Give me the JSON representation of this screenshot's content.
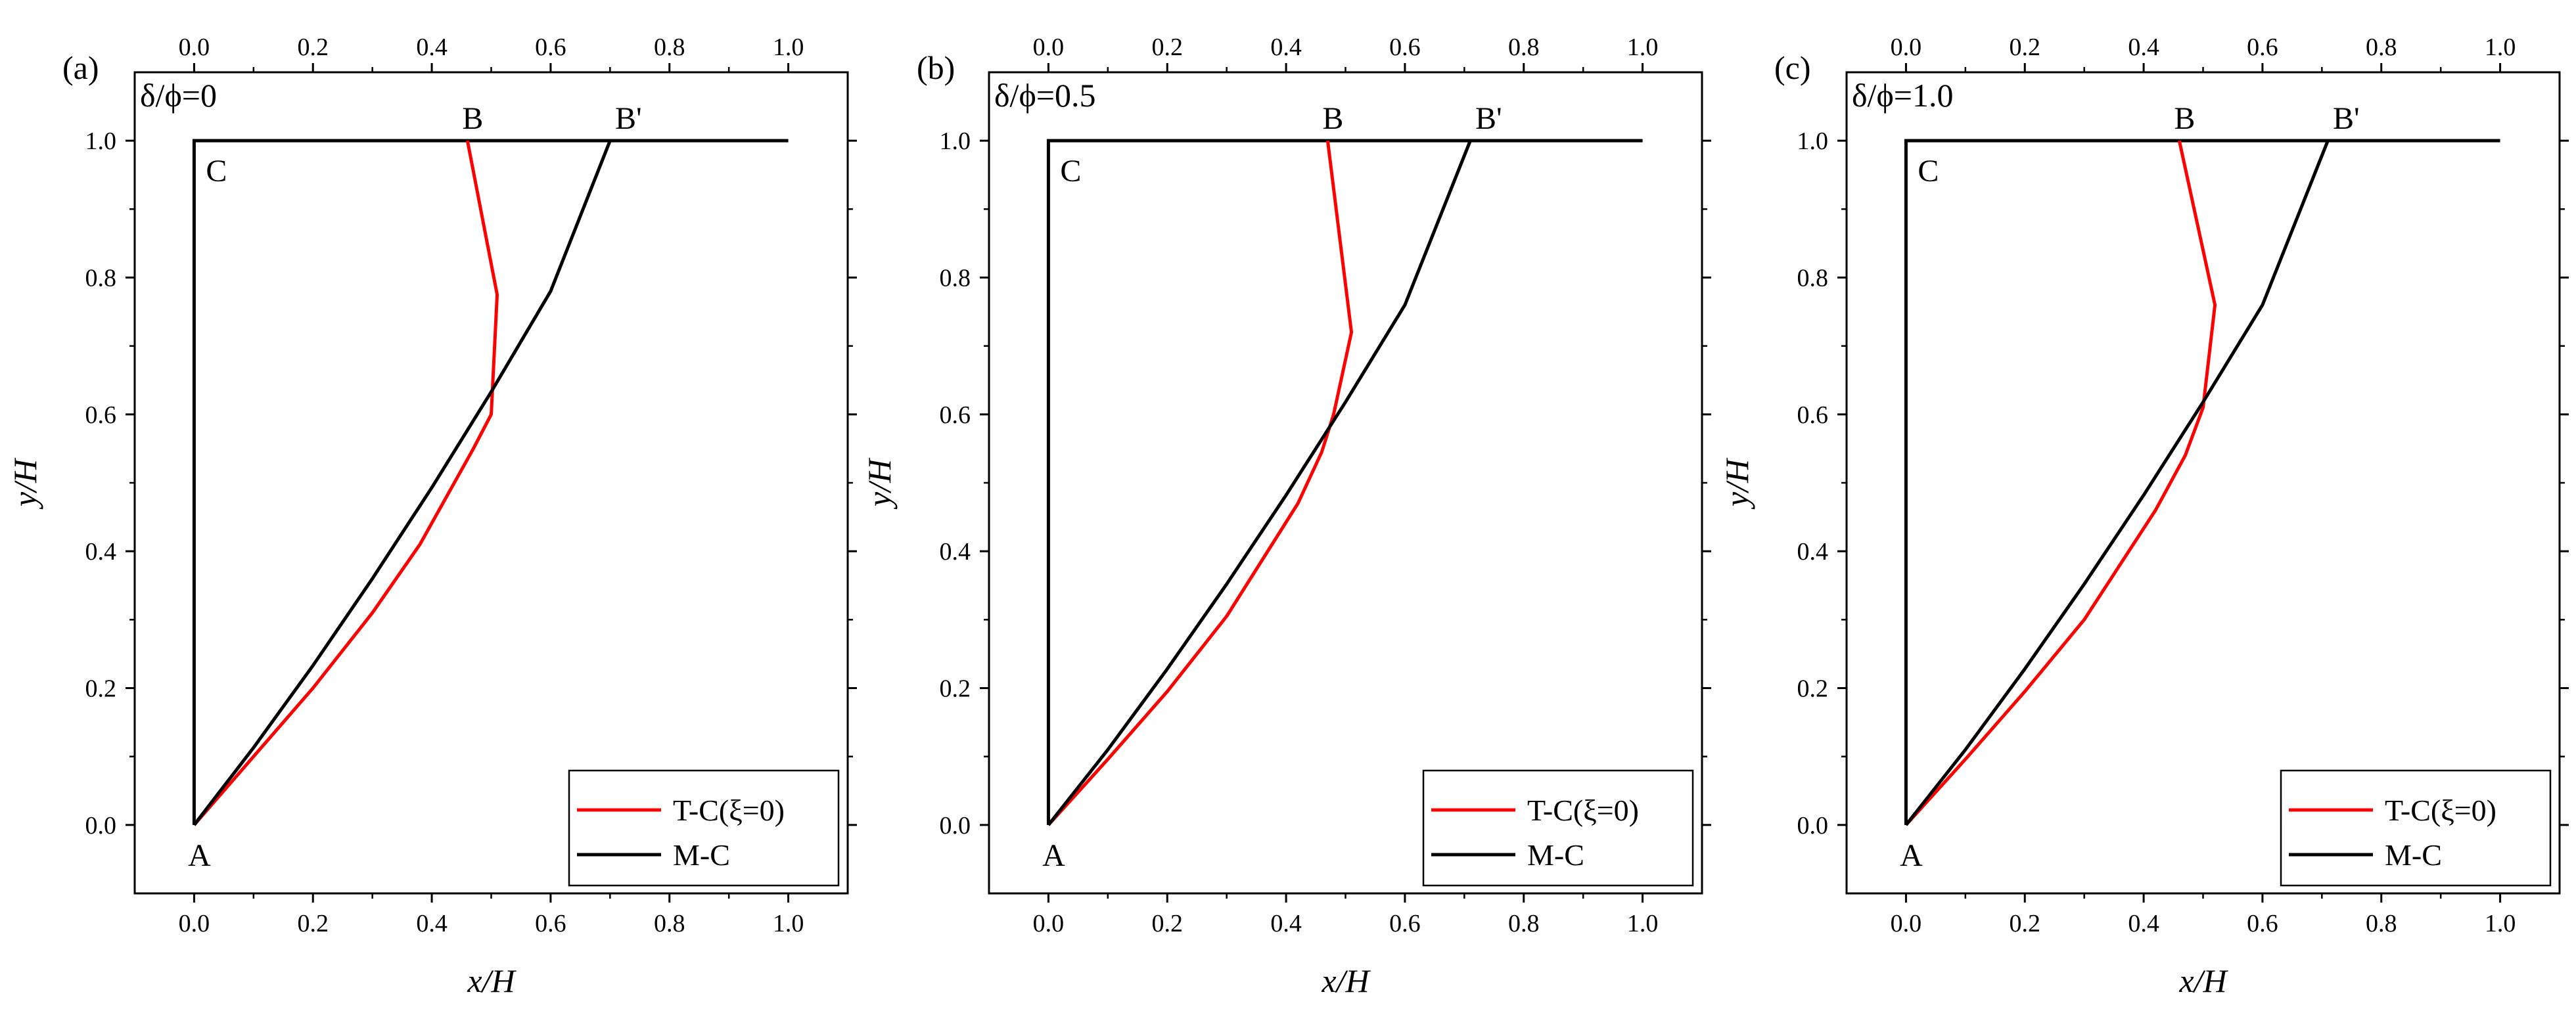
{
  "chart_data": [
    {
      "type": "line",
      "panel_label": "(a)",
      "ratio_label": "δ/ϕ=0",
      "xlabel": "x/H",
      "ylabel": "y/H",
      "xlim": [
        -0.1,
        1.1
      ],
      "ylim": [
        -0.1,
        1.1
      ],
      "xticks": [
        0.0,
        0.2,
        0.4,
        0.6,
        0.8,
        1.0
      ],
      "yticks": [
        0.0,
        0.2,
        0.4,
        0.6,
        0.8,
        1.0
      ],
      "xtick_labels": [
        "0.0",
        "0.2",
        "0.4",
        "0.6",
        "0.8",
        "1.0"
      ],
      "ytick_labels": [
        "0.0",
        "0.2",
        "0.4",
        "0.6",
        "0.8",
        "1.0"
      ],
      "top_axis_ticks": [
        "0.0",
        "0.2",
        "0.4",
        "0.6",
        "0.8",
        "1.0"
      ],
      "point_labels": [
        {
          "text": "A",
          "x": 0.0,
          "y": 0.0
        },
        {
          "text": "B",
          "x": 0.46,
          "y": 1.0
        },
        {
          "text": "B'",
          "x": 0.7,
          "y": 1.0
        },
        {
          "text": "C",
          "x": 0.0,
          "y": 1.0
        }
      ],
      "series": [
        {
          "name": "T-C(ξ=0)",
          "color": "#ff0000",
          "x": [
            0.0,
            0.1,
            0.2,
            0.3,
            0.38,
            0.47,
            0.5,
            0.51,
            0.46
          ],
          "y": [
            0.0,
            0.1,
            0.2,
            0.31,
            0.41,
            0.55,
            0.6,
            0.775,
            1.0
          ]
        },
        {
          "name": "M-C",
          "color": "#000000",
          "x": [
            0.0,
            0.1,
            0.2,
            0.3,
            0.4,
            0.5,
            0.6,
            0.7
          ],
          "y": [
            0.0,
            0.113,
            0.233,
            0.36,
            0.493,
            0.633,
            0.78,
            1.0
          ]
        }
      ],
      "boundary": {
        "x": [
          1.0,
          0.0,
          0.0
        ],
        "y": [
          1.0,
          1.0,
          0.0
        ],
        "color": "#000000"
      },
      "legend": {
        "placement": "bottom-right",
        "entries": [
          "T-C(ξ=0)",
          "M-C"
        ]
      }
    },
    {
      "type": "line",
      "panel_label": "(b)",
      "ratio_label": "δ/ϕ=0.5",
      "xlabel": "x/H",
      "ylabel": "y/H",
      "xlim": [
        -0.1,
        1.1
      ],
      "ylim": [
        -0.1,
        1.1
      ],
      "xticks": [
        0.0,
        0.2,
        0.4,
        0.6,
        0.8,
        1.0
      ],
      "yticks": [
        0.0,
        0.2,
        0.4,
        0.6,
        0.8,
        1.0
      ],
      "xtick_labels": [
        "0.0",
        "0.2",
        "0.4",
        "0.6",
        "0.8",
        "1.0"
      ],
      "ytick_labels": [
        "0.0",
        "0.2",
        "0.4",
        "0.6",
        "0.8",
        "1.0"
      ],
      "top_axis_ticks": [
        "0.0",
        "0.2",
        "0.4",
        "0.6",
        "0.8",
        "1.0"
      ],
      "point_labels": [
        {
          "text": "A",
          "x": 0.0,
          "y": 0.0
        },
        {
          "text": "B",
          "x": 0.47,
          "y": 1.0
        },
        {
          "text": "B'",
          "x": 0.71,
          "y": 1.0
        },
        {
          "text": "C",
          "x": 0.0,
          "y": 1.0
        }
      ],
      "series": [
        {
          "name": "T-C(ξ=0)",
          "color": "#ff0000",
          "x": [
            0.0,
            0.1,
            0.2,
            0.3,
            0.42,
            0.46,
            0.48,
            0.51,
            0.47
          ],
          "y": [
            0.0,
            0.096,
            0.195,
            0.305,
            0.47,
            0.545,
            0.6,
            0.72,
            1.0
          ]
        },
        {
          "name": "M-C",
          "color": "#000000",
          "x": [
            0.0,
            0.1,
            0.2,
            0.3,
            0.4,
            0.5,
            0.6,
            0.71
          ],
          "y": [
            0.0,
            0.11,
            0.228,
            0.352,
            0.482,
            0.618,
            0.76,
            1.0
          ]
        }
      ],
      "boundary": {
        "x": [
          1.0,
          0.0,
          0.0
        ],
        "y": [
          1.0,
          1.0,
          0.0
        ],
        "color": "#000000"
      },
      "legend": {
        "placement": "bottom-right",
        "entries": [
          "T-C(ξ=0)",
          "M-C"
        ]
      }
    },
    {
      "type": "line",
      "panel_label": "(c)",
      "ratio_label": "δ/ϕ=1.0",
      "xlabel": "x/H",
      "ylabel": "y/H",
      "xlim": [
        -0.1,
        1.1
      ],
      "ylim": [
        -0.1,
        1.1
      ],
      "xticks": [
        0.0,
        0.2,
        0.4,
        0.6,
        0.8,
        1.0
      ],
      "yticks": [
        0.0,
        0.2,
        0.4,
        0.6,
        0.8,
        1.0
      ],
      "xtick_labels": [
        "0.0",
        "0.2",
        "0.4",
        "0.6",
        "0.8",
        "1.0"
      ],
      "ytick_labels": [
        "0.0",
        "0.2",
        "0.4",
        "0.6",
        "0.8",
        "1.0"
      ],
      "top_axis_ticks": [
        "0.0",
        "0.2",
        "0.4",
        "0.6",
        "0.8",
        "1.0"
      ],
      "point_labels": [
        {
          "text": "A",
          "x": 0.0,
          "y": 0.0
        },
        {
          "text": "B",
          "x": 0.46,
          "y": 1.0
        },
        {
          "text": "B'",
          "x": 0.71,
          "y": 1.0
        },
        {
          "text": "C",
          "x": 0.0,
          "y": 1.0
        }
      ],
      "series": [
        {
          "name": "T-C(ξ=0)",
          "color": "#ff0000",
          "x": [
            0.0,
            0.1,
            0.2,
            0.3,
            0.42,
            0.47,
            0.5,
            0.52,
            0.46
          ],
          "y": [
            0.0,
            0.096,
            0.195,
            0.3,
            0.46,
            0.54,
            0.61,
            0.76,
            1.0
          ]
        },
        {
          "name": "M-C",
          "color": "#000000",
          "x": [
            0.0,
            0.1,
            0.2,
            0.3,
            0.4,
            0.5,
            0.6,
            0.71
          ],
          "y": [
            0.0,
            0.11,
            0.228,
            0.352,
            0.482,
            0.618,
            0.76,
            1.0
          ]
        }
      ],
      "boundary": {
        "x": [
          1.0,
          0.0,
          0.0
        ],
        "y": [
          1.0,
          1.0,
          0.0
        ],
        "color": "#000000"
      },
      "legend": {
        "placement": "bottom-right",
        "entries": [
          "T-C(ξ=0)",
          "M-C"
        ]
      }
    }
  ]
}
